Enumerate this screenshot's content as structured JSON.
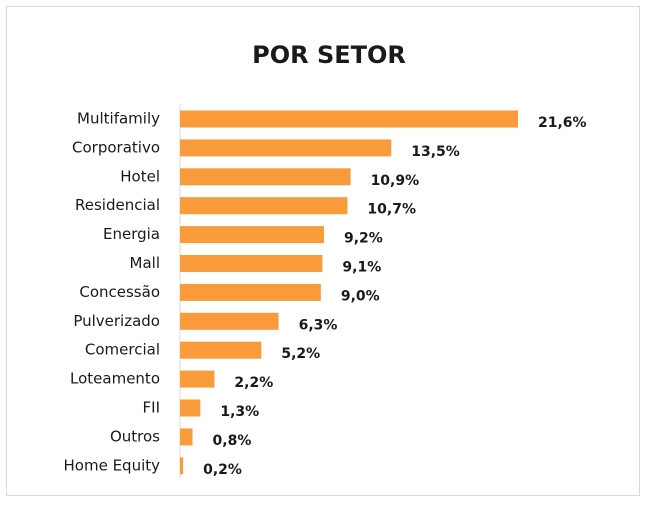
{
  "chart_data": {
    "type": "bar",
    "orientation": "horizontal",
    "title": "POR SETOR",
    "categories": [
      "Multifamily",
      "Corporativo",
      "Hotel",
      "Residencial",
      "Energia",
      "Mall",
      "Concessão",
      "Pulverizado",
      "Comercial",
      "Loteamento",
      "FII",
      "Outros",
      "Home Equity"
    ],
    "values": [
      21.6,
      13.5,
      10.9,
      10.7,
      9.2,
      9.1,
      9.0,
      6.3,
      5.2,
      2.2,
      1.3,
      0.8,
      0.2
    ],
    "value_labels": [
      "21,6%",
      "13,5%",
      "10,9%",
      "10,7%",
      "9,2%",
      "9,1%",
      "9,0%",
      "6,3%",
      "5,2%",
      "2,2%",
      "1,3%",
      "0,8%",
      "0,2%"
    ],
    "color": "#f99b3a"
  }
}
